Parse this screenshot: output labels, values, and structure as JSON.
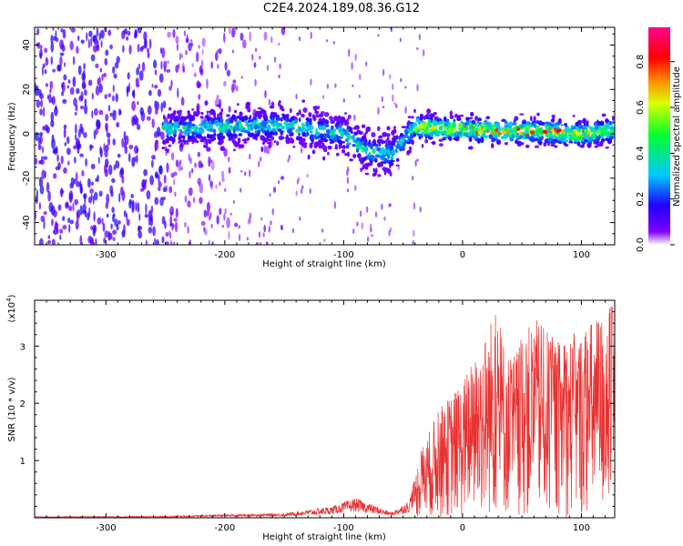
{
  "title": "C2E4.2024.189.08.36.G12",
  "colors": {
    "trace": "#e83030",
    "axis": "#000000"
  },
  "chart_data": [
    {
      "type": "heatmap",
      "title": "",
      "xlabel": "Height of straight line (km)",
      "ylabel": "Frequency (Hz)",
      "xlim": [
        -360,
        128
      ],
      "ylim": [
        -50,
        48
      ],
      "xticks": [
        -300,
        -200,
        -100,
        0,
        100
      ],
      "xtick_labels": [
        "-300",
        "-200",
        "-100",
        "0",
        "100"
      ],
      "yticks": [
        -40,
        -20,
        0,
        20,
        40
      ],
      "ytick_labels": [
        "-40",
        "-20",
        "0",
        "20",
        "40"
      ],
      "colorbar": {
        "label": "Normalized spectral amplitude",
        "range": [
          0,
          0.95
        ],
        "ticks": [
          0.0,
          0.2,
          0.4,
          0.6,
          0.8
        ],
        "tick_labels": [
          "0.0",
          "0.2",
          "0.4",
          "0.6",
          "0.8"
        ],
        "colormap": [
          "#ffffff",
          "#5a00ff",
          "#0000ff",
          "#00c0ff",
          "#00ff40",
          "#ffff00",
          "#ff8000",
          "#ff0000",
          "#ff0080"
        ]
      },
      "description_band": {
        "noisy_region_x": [
          -360,
          -250
        ],
        "band_center_points": [
          [
            -250,
            2
          ],
          [
            -150,
            4
          ],
          [
            -100,
            0
          ],
          [
            -80,
            -8
          ],
          [
            -60,
            -9
          ],
          [
            -40,
            3
          ],
          [
            0,
            2
          ],
          [
            60,
            1
          ],
          [
            100,
            0
          ],
          [
            128,
            2
          ]
        ]
      }
    },
    {
      "type": "line",
      "title": "",
      "xlabel": "Height of straight line (km)",
      "ylabel": "SNR (10 * v/v)",
      "y_multiplier_label": "(x10",
      "y_multiplier_exp": "4",
      "xlim": [
        -360,
        128
      ],
      "ylim": [
        0,
        3.8
      ],
      "xticks": [
        -300,
        -200,
        -100,
        0,
        100
      ],
      "xtick_labels": [
        "-300",
        "-200",
        "-100",
        "0",
        "100"
      ],
      "yticks": [
        1,
        2,
        3
      ],
      "ytick_labels": [
        "1",
        "2",
        "3"
      ],
      "envelope": [
        {
          "x": -360,
          "y": 0.02
        },
        {
          "x": -250,
          "y": 0.03
        },
        {
          "x": -200,
          "y": 0.06
        },
        {
          "x": -150,
          "y": 0.08
        },
        {
          "x": -110,
          "y": 0.2
        },
        {
          "x": -90,
          "y": 0.35
        },
        {
          "x": -60,
          "y": 0.1
        },
        {
          "x": -45,
          "y": 0.3
        },
        {
          "x": -35,
          "y": 1.2
        },
        {
          "x": -20,
          "y": 1.9
        },
        {
          "x": 0,
          "y": 2.4
        },
        {
          "x": 15,
          "y": 3.0
        },
        {
          "x": 27,
          "y": 3.7
        },
        {
          "x": 40,
          "y": 2.8
        },
        {
          "x": 60,
          "y": 3.5
        },
        {
          "x": 80,
          "y": 3.1
        },
        {
          "x": 100,
          "y": 3.3
        },
        {
          "x": 115,
          "y": 3.6
        },
        {
          "x": 128,
          "y": 3.8
        }
      ]
    }
  ]
}
